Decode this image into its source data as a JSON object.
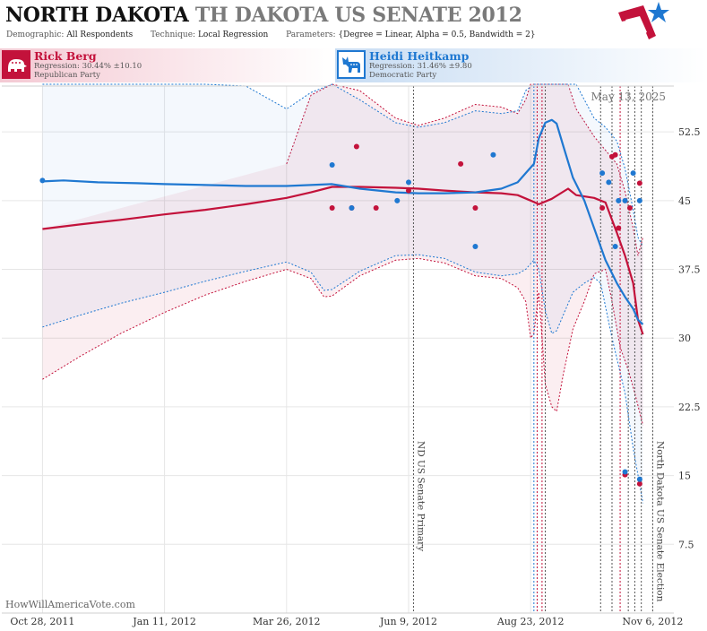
{
  "header": {
    "title_primary": "NORTH DAKOTA",
    "title_secondary": "TH DAKOTA US SENATE 2012",
    "demographic_label": "Demographic:",
    "demographic_value": "All Respondents",
    "technique_label": "Technique:",
    "technique_value": "Local Regression",
    "parameters_label": "Parameters:",
    "parameters_value": "{Degree = Linear, Alpha = 0.5, Bandwidth = 2}"
  },
  "candidates": [
    {
      "name": "Rick Berg",
      "regression": "Regression: 30.44% ±10.10",
      "party": "Republican Party",
      "color": "#c3123b",
      "icon": "elephant-icon"
    },
    {
      "name": "Heidi Heitkamp",
      "regression": "Regression: 31.46% ±9.80",
      "party": "Democratic Party",
      "color": "#1f78d1",
      "icon": "donkey-icon"
    }
  ],
  "date_stamp": "May 13, 2025",
  "watermark": "HowWillAmericaVote.com",
  "flag_icon": "us-flag-star-icon",
  "chart_data": {
    "type": "line",
    "x_ticks": [
      "Oct 28, 2011",
      "Jan 11, 2012",
      "Mar 26, 2012",
      "Jun 9, 2012",
      "Aug 23, 2012",
      "Nov 6, 2012"
    ],
    "y_ticks": [
      7.5,
      15,
      22.5,
      30,
      37.5,
      45,
      52.5
    ],
    "ylim": [
      0,
      57.5
    ],
    "xlim": [
      "2011-10-03",
      "2012-11-19"
    ],
    "grid": true,
    "annotations": [
      {
        "label": "ND US Senate Primary",
        "date": "2012-06-12",
        "style": "dotted-gray"
      },
      {
        "label": "North Dakota US Senate Election",
        "date": "2012-11-06",
        "style": "dotted-gray"
      }
    ],
    "event_lines": [
      {
        "date": "2012-08-25",
        "color": "#1f78d1"
      },
      {
        "date": "2012-08-27",
        "color": "#c3123b"
      },
      {
        "date": "2012-08-30",
        "color": "#c3123b"
      },
      {
        "date": "2012-09-01",
        "color": "#555555"
      },
      {
        "date": "2012-10-05",
        "color": "#555555"
      },
      {
        "date": "2012-10-12",
        "color": "#555555"
      },
      {
        "date": "2012-10-17",
        "color": "#c3123b"
      },
      {
        "date": "2012-10-22",
        "color": "#555555"
      },
      {
        "date": "2012-10-26",
        "color": "#555555"
      },
      {
        "date": "2012-10-30",
        "color": "#555555"
      }
    ],
    "series": [
      {
        "name": "Rick Berg",
        "color": "#c3123b",
        "trend": [
          [
            "2011-10-28",
            41.9
          ],
          [
            "2011-11-20",
            42.4
          ],
          [
            "2011-12-15",
            42.9
          ],
          [
            "2012-01-11",
            43.5
          ],
          [
            "2012-02-05",
            44.0
          ],
          [
            "2012-03-01",
            44.6
          ],
          [
            "2012-03-26",
            45.3
          ],
          [
            "2012-04-10",
            45.9
          ],
          [
            "2012-04-23",
            46.5
          ],
          [
            "2012-05-10",
            46.5
          ],
          [
            "2012-06-01",
            46.4
          ],
          [
            "2012-06-15",
            46.3
          ],
          [
            "2012-07-01",
            46.1
          ],
          [
            "2012-07-20",
            45.9
          ],
          [
            "2012-08-05",
            45.8
          ],
          [
            "2012-08-15",
            45.6
          ],
          [
            "2012-08-23",
            45.0
          ],
          [
            "2012-08-28",
            44.6
          ],
          [
            "2012-09-05",
            45.2
          ],
          [
            "2012-09-15",
            46.3
          ],
          [
            "2012-09-20",
            45.6
          ],
          [
            "2012-10-01",
            45.3
          ],
          [
            "2012-10-08",
            44.8
          ],
          [
            "2012-10-15",
            41.5
          ],
          [
            "2012-10-20",
            39.0
          ],
          [
            "2012-10-25",
            36.0
          ],
          [
            "2012-10-28",
            32.0
          ],
          [
            "2012-10-31",
            30.4
          ]
        ],
        "upper": [
          [
            "2012-03-26",
            49.0
          ],
          [
            "2012-04-10",
            56.5
          ],
          [
            "2012-04-23",
            63.0
          ],
          [
            "2012-05-10",
            57.0
          ],
          [
            "2012-06-01",
            54.0
          ],
          [
            "2012-06-15",
            53.2
          ],
          [
            "2012-07-01",
            54.0
          ],
          [
            "2012-07-20",
            55.5
          ],
          [
            "2012-08-05",
            55.2
          ],
          [
            "2012-08-15",
            54.5
          ],
          [
            "2012-08-20",
            56.0
          ],
          [
            "2012-08-23",
            60.0
          ],
          [
            "2012-08-28",
            65.0
          ],
          [
            "2012-09-05",
            68.0
          ],
          [
            "2012-09-15",
            58.0
          ],
          [
            "2012-09-20",
            55.0
          ],
          [
            "2012-10-01",
            52.0
          ],
          [
            "2012-10-08",
            50.5
          ],
          [
            "2012-10-15",
            49.0
          ],
          [
            "2012-10-20",
            46.0
          ],
          [
            "2012-10-25",
            42.0
          ],
          [
            "2012-10-28",
            39.0
          ],
          [
            "2012-10-31",
            41.0
          ]
        ],
        "lower": [
          [
            "2011-10-28",
            25.5
          ],
          [
            "2011-11-20",
            28.0
          ],
          [
            "2011-12-15",
            30.5
          ],
          [
            "2012-01-11",
            32.8
          ],
          [
            "2012-02-05",
            34.7
          ],
          [
            "2012-03-01",
            36.2
          ],
          [
            "2012-03-26",
            37.5
          ],
          [
            "2012-04-10",
            36.5
          ],
          [
            "2012-04-18",
            34.5
          ],
          [
            "2012-04-23",
            34.6
          ],
          [
            "2012-05-10",
            36.8
          ],
          [
            "2012-06-01",
            38.5
          ],
          [
            "2012-06-15",
            38.7
          ],
          [
            "2012-07-01",
            38.2
          ],
          [
            "2012-07-20",
            36.8
          ],
          [
            "2012-08-05",
            36.5
          ],
          [
            "2012-08-15",
            35.5
          ],
          [
            "2012-08-20",
            34.0
          ],
          [
            "2012-08-23",
            30.0
          ],
          [
            "2012-08-25",
            30.5
          ],
          [
            "2012-08-28",
            35.0
          ],
          [
            "2012-09-01",
            25.0
          ],
          [
            "2012-09-05",
            22.5
          ],
          [
            "2012-09-08",
            22.0
          ],
          [
            "2012-09-12",
            26.0
          ],
          [
            "2012-09-18",
            31.0
          ],
          [
            "2012-09-25",
            34.0
          ],
          [
            "2012-10-01",
            37.0
          ],
          [
            "2012-10-08",
            37.5
          ],
          [
            "2012-10-12",
            34.0
          ],
          [
            "2012-10-17",
            29.0
          ],
          [
            "2012-10-22",
            26.5
          ],
          [
            "2012-10-26",
            24.0
          ],
          [
            "2012-10-31",
            20.5
          ]
        ],
        "polls": [
          [
            "2012-04-23",
            44.2
          ],
          [
            "2012-05-05",
            44.2
          ],
          [
            "2012-05-08",
            50.9
          ],
          [
            "2012-05-20",
            44.2
          ],
          [
            "2012-06-09",
            46.1
          ],
          [
            "2012-07-11",
            49.0
          ],
          [
            "2012-07-20",
            44.2
          ],
          [
            "2012-10-06",
            44.2
          ],
          [
            "2012-10-12",
            49.8
          ],
          [
            "2012-10-14",
            50.0
          ],
          [
            "2012-10-16",
            42.0
          ],
          [
            "2012-10-23",
            44.2
          ],
          [
            "2012-10-29",
            46.9
          ],
          [
            "2012-10-29",
            14.1
          ],
          [
            "2012-10-20",
            15.1
          ]
        ]
      },
      {
        "name": "Heidi Heitkamp",
        "color": "#1f78d1",
        "trend": [
          [
            "2011-10-28",
            47.1
          ],
          [
            "2011-11-10",
            47.2
          ],
          [
            "2011-12-01",
            47.0
          ],
          [
            "2011-12-25",
            46.9
          ],
          [
            "2012-01-11",
            46.8
          ],
          [
            "2012-02-05",
            46.7
          ],
          [
            "2012-03-01",
            46.6
          ],
          [
            "2012-03-26",
            46.6
          ],
          [
            "2012-04-10",
            46.7
          ],
          [
            "2012-04-23",
            46.8
          ],
          [
            "2012-05-10",
            46.3
          ],
          [
            "2012-06-01",
            45.9
          ],
          [
            "2012-06-15",
            45.8
          ],
          [
            "2012-07-01",
            45.8
          ],
          [
            "2012-07-20",
            45.9
          ],
          [
            "2012-08-05",
            46.3
          ],
          [
            "2012-08-15",
            47.0
          ],
          [
            "2012-08-20",
            48.0
          ],
          [
            "2012-08-25",
            49.0
          ],
          [
            "2012-08-28",
            51.8
          ],
          [
            "2012-09-01",
            53.5
          ],
          [
            "2012-09-05",
            53.8
          ],
          [
            "2012-09-08",
            53.4
          ],
          [
            "2012-09-12",
            51.0
          ],
          [
            "2012-09-18",
            47.5
          ],
          [
            "2012-09-25",
            45.0
          ],
          [
            "2012-10-01",
            42.0
          ],
          [
            "2012-10-08",
            38.5
          ],
          [
            "2012-10-15",
            36.0
          ],
          [
            "2012-10-20",
            34.5
          ],
          [
            "2012-10-25",
            33.2
          ],
          [
            "2012-10-28",
            32.0
          ],
          [
            "2012-10-31",
            31.5
          ]
        ],
        "upper": [
          [
            "2011-10-28",
            80.0
          ],
          [
            "2012-01-11",
            66.0
          ],
          [
            "2012-02-05",
            61.0
          ],
          [
            "2012-03-01",
            57.5
          ],
          [
            "2012-03-26",
            55.0
          ],
          [
            "2012-04-10",
            56.8
          ],
          [
            "2012-04-23",
            59.0
          ],
          [
            "2012-05-10",
            56.0
          ],
          [
            "2012-06-01",
            53.5
          ],
          [
            "2012-06-15",
            53.0
          ],
          [
            "2012-07-01",
            53.5
          ],
          [
            "2012-07-20",
            54.8
          ],
          [
            "2012-08-05",
            54.5
          ],
          [
            "2012-08-15",
            54.8
          ],
          [
            "2012-08-20",
            57.0
          ],
          [
            "2012-08-25",
            64.0
          ],
          [
            "2012-09-01",
            75.0
          ],
          [
            "2012-09-10",
            65.0
          ],
          [
            "2012-09-20",
            58.0
          ],
          [
            "2012-10-01",
            54.0
          ],
          [
            "2012-10-08",
            53.0
          ],
          [
            "2012-10-15",
            51.5
          ],
          [
            "2012-10-20",
            48.5
          ],
          [
            "2012-10-25",
            44.0
          ],
          [
            "2012-10-28",
            41.0
          ],
          [
            "2012-10-31",
            40.0
          ]
        ],
        "lower": [
          [
            "2011-10-28",
            31.2
          ],
          [
            "2011-11-20",
            32.5
          ],
          [
            "2011-12-15",
            33.8
          ],
          [
            "2012-01-11",
            35.0
          ],
          [
            "2012-02-05",
            36.2
          ],
          [
            "2012-03-01",
            37.3
          ],
          [
            "2012-03-26",
            38.3
          ],
          [
            "2012-04-10",
            37.2
          ],
          [
            "2012-04-18",
            35.2
          ],
          [
            "2012-04-23",
            35.3
          ],
          [
            "2012-05-10",
            37.3
          ],
          [
            "2012-06-01",
            39.0
          ],
          [
            "2012-06-15",
            39.1
          ],
          [
            "2012-07-01",
            38.7
          ],
          [
            "2012-07-20",
            37.2
          ],
          [
            "2012-08-05",
            36.8
          ],
          [
            "2012-08-15",
            37.0
          ],
          [
            "2012-08-20",
            37.5
          ],
          [
            "2012-08-25",
            38.5
          ],
          [
            "2012-08-28",
            37.5
          ],
          [
            "2012-09-01",
            33.0
          ],
          [
            "2012-09-05",
            30.5
          ],
          [
            "2012-09-08",
            30.8
          ],
          [
            "2012-09-12",
            32.5
          ],
          [
            "2012-09-18",
            35.0
          ],
          [
            "2012-09-25",
            36.0
          ],
          [
            "2012-10-01",
            36.6
          ],
          [
            "2012-10-05",
            36.0
          ],
          [
            "2012-10-12",
            30.0
          ],
          [
            "2012-10-20",
            24.0
          ],
          [
            "2012-10-25",
            18.0
          ],
          [
            "2012-10-31",
            12.0
          ]
        ],
        "polls": [
          [
            "2011-10-28",
            47.2
          ],
          [
            "2012-04-23",
            48.9
          ],
          [
            "2012-05-05",
            44.2
          ],
          [
            "2012-06-02",
            45.0
          ],
          [
            "2012-06-09",
            47.0
          ],
          [
            "2012-07-20",
            40.0
          ],
          [
            "2012-07-31",
            50.0
          ],
          [
            "2012-10-06",
            48.0
          ],
          [
            "2012-10-10",
            47.0
          ],
          [
            "2012-10-14",
            40.0
          ],
          [
            "2012-10-16",
            45.0
          ],
          [
            "2012-10-20",
            45.0
          ],
          [
            "2012-10-25",
            48.0
          ],
          [
            "2012-10-29",
            45.0
          ],
          [
            "2012-10-20",
            15.4
          ],
          [
            "2012-10-29",
            14.6
          ]
        ]
      }
    ]
  }
}
